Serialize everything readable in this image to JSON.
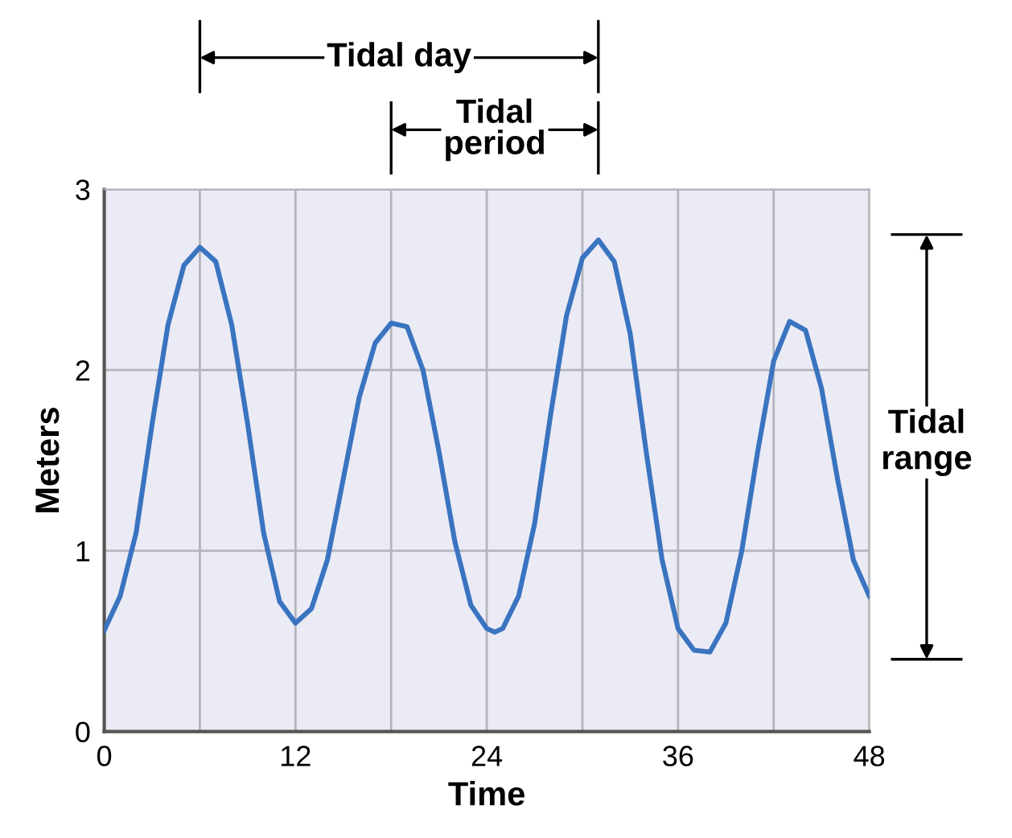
{
  "chart_data": {
    "type": "line",
    "xlabel": "Time",
    "ylabel": "Meters",
    "x": [
      0,
      1,
      2,
      3,
      4,
      5,
      6,
      7,
      8,
      9,
      10,
      11,
      12,
      13,
      14,
      15,
      16,
      17,
      18,
      19,
      20,
      21,
      22,
      23,
      24,
      24.5,
      25,
      26,
      27,
      28,
      29,
      30,
      31,
      32,
      33,
      34,
      35,
      36,
      37,
      38,
      39,
      40,
      41,
      42,
      43,
      44,
      45,
      46,
      47,
      48
    ],
    "series": [
      {
        "color": "#3a74c0",
        "values": [
          0.56,
          0.75,
          1.1,
          1.7,
          2.25,
          2.58,
          2.68,
          2.6,
          2.25,
          1.7,
          1.1,
          0.72,
          0.6,
          0.68,
          0.95,
          1.4,
          1.85,
          2.15,
          2.26,
          2.24,
          2.0,
          1.55,
          1.05,
          0.7,
          0.57,
          0.55,
          0.57,
          0.75,
          1.15,
          1.75,
          2.3,
          2.62,
          2.72,
          2.6,
          2.2,
          1.55,
          0.95,
          0.57,
          0.45,
          0.44,
          0.6,
          1.0,
          1.55,
          2.05,
          2.27,
          2.22,
          1.9,
          1.4,
          0.95,
          0.75
        ]
      }
    ],
    "xlim": [
      0,
      48
    ],
    "ylim": [
      0,
      3
    ],
    "xticks": [
      0,
      {
        "value": 6,
        "label": null
      },
      12,
      {
        "value": 18,
        "label": null
      },
      24,
      {
        "value": 30,
        "label": null
      },
      36,
      {
        "value": 42,
        "label": null
      },
      48
    ],
    "yticks": [
      0,
      1,
      2,
      3
    ],
    "grid": true,
    "marker": "none",
    "line_style": "solid",
    "annotations": [
      "Tidal day",
      "Tidal\nperiod",
      "Tidal range"
    ]
  }
}
